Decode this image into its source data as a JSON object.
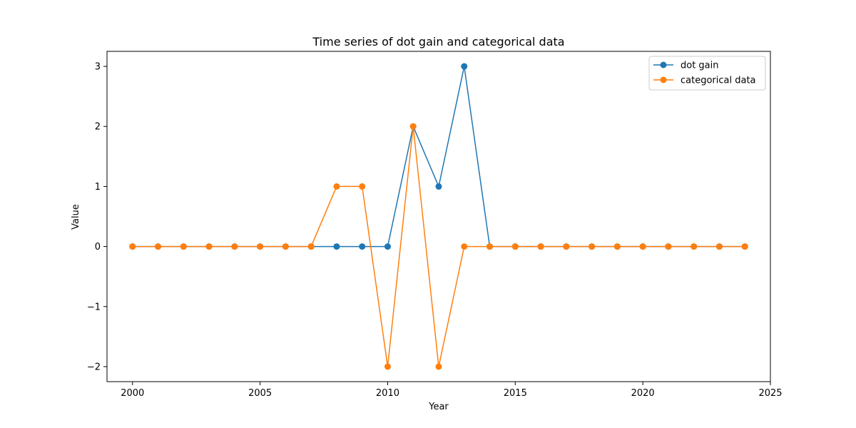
{
  "chart_data": {
    "type": "line",
    "title": "Time series of dot gain and categorical data",
    "xlabel": "Year",
    "ylabel": "Value",
    "x": [
      2000,
      2001,
      2002,
      2003,
      2004,
      2005,
      2006,
      2007,
      2008,
      2009,
      2010,
      2011,
      2012,
      2013,
      2014,
      2015,
      2016,
      2017,
      2018,
      2019,
      2020,
      2021,
      2022,
      2023,
      2024
    ],
    "series": [
      {
        "name": "dot gain",
        "color": "#1f77b4",
        "values": [
          0,
          0,
          0,
          0,
          0,
          0,
          0,
          0,
          0,
          0,
          0,
          2,
          1,
          3,
          0,
          0,
          0,
          0,
          0,
          0,
          0,
          0,
          0,
          0,
          0
        ]
      },
      {
        "name": "categorical data",
        "color": "#ff7f0e",
        "values": [
          0,
          0,
          0,
          0,
          0,
          0,
          0,
          0,
          1,
          1,
          -2,
          2,
          -2,
          0,
          0,
          0,
          0,
          0,
          0,
          0,
          0,
          0,
          0,
          0,
          0
        ]
      }
    ],
    "xlim": [
      1999,
      2025
    ],
    "ylim": [
      -2.25,
      3.25
    ],
    "xticks": [
      2000,
      2005,
      2010,
      2015,
      2020,
      2025
    ],
    "xtick_labels": [
      "2000",
      "2005",
      "2010",
      "2015",
      "2020",
      "2025"
    ],
    "yticks": [
      -2,
      -1,
      0,
      1,
      2,
      3
    ],
    "ytick_labels": [
      "−2",
      "−1",
      "0",
      "1",
      "2",
      "3"
    ],
    "grid": false,
    "legend_position": "top-right"
  }
}
